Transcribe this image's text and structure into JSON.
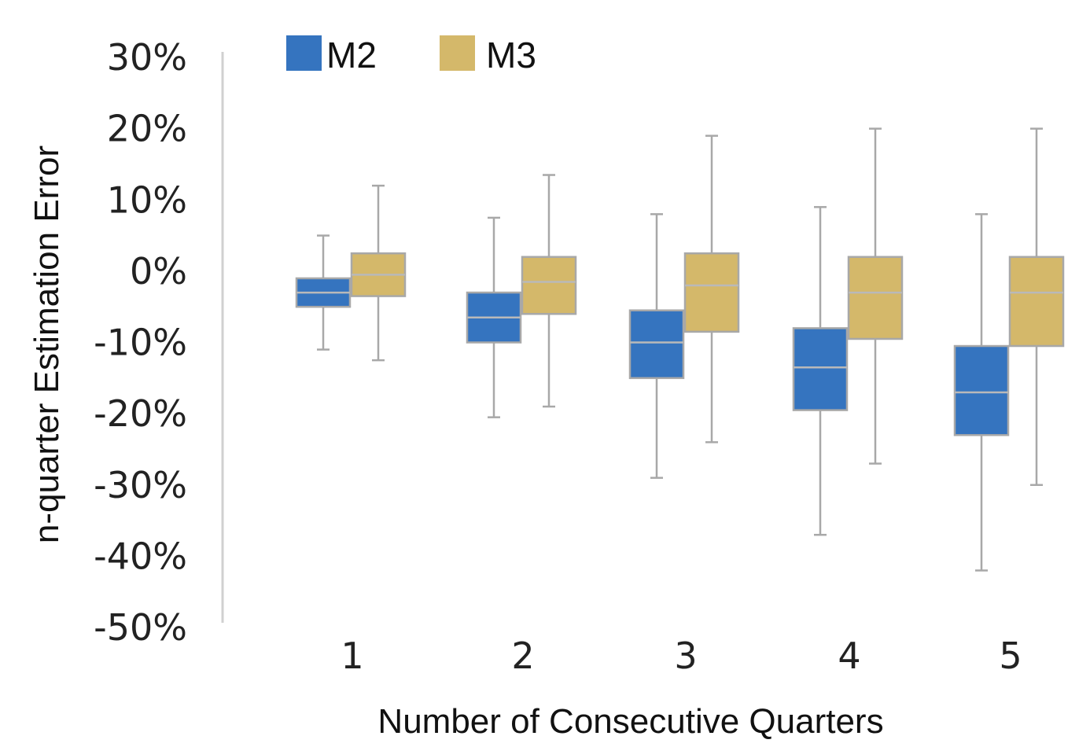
{
  "chart_data": {
    "type": "box",
    "title": "",
    "xlabel": "Number of Consecutive Quarters",
    "ylabel": "n-quarter Estimation Error",
    "categories": [
      "1",
      "2",
      "3",
      "4",
      "5"
    ],
    "ylim": [
      -50,
      30
    ],
    "yticks": [
      30,
      20,
      10,
      0,
      -10,
      -20,
      -30,
      -40,
      -50
    ],
    "ytick_labels": [
      "30%",
      "20%",
      "10%",
      "0%",
      "-10%",
      "-20%",
      "-30%",
      "-40%",
      "-50%"
    ],
    "grid": false,
    "legend_position": "top-left",
    "series": [
      {
        "name": "M2",
        "color": "#3574BF",
        "boxes": [
          {
            "whisker_low": -11,
            "q1": -5,
            "median": -3,
            "q3": -1,
            "whisker_high": 5
          },
          {
            "whisker_low": -20.5,
            "q1": -10,
            "median": -6.5,
            "q3": -3,
            "whisker_high": 7.5
          },
          {
            "whisker_low": -29,
            "q1": -15,
            "median": -10,
            "q3": -5.5,
            "whisker_high": 8
          },
          {
            "whisker_low": -37,
            "q1": -19.5,
            "median": -13.5,
            "q3": -8,
            "whisker_high": 9
          },
          {
            "whisker_low": -42,
            "q1": -23,
            "median": -17,
            "q3": -10.5,
            "whisker_high": 8
          }
        ]
      },
      {
        "name": "M3",
        "color": "#D4B86A",
        "boxes": [
          {
            "whisker_low": -12.5,
            "q1": -3.5,
            "median": -0.5,
            "q3": 2.5,
            "whisker_high": 12
          },
          {
            "whisker_low": -19,
            "q1": -6,
            "median": -1.5,
            "q3": 2,
            "whisker_high": 13.5
          },
          {
            "whisker_low": -24,
            "q1": -8.5,
            "median": -2,
            "q3": 2.5,
            "whisker_high": 19
          },
          {
            "whisker_low": -27,
            "q1": -9.5,
            "median": -3,
            "q3": 2,
            "whisker_high": 20
          },
          {
            "whisker_low": -30,
            "q1": -10.5,
            "median": -3,
            "q3": 2,
            "whisker_high": 20
          }
        ]
      }
    ]
  }
}
